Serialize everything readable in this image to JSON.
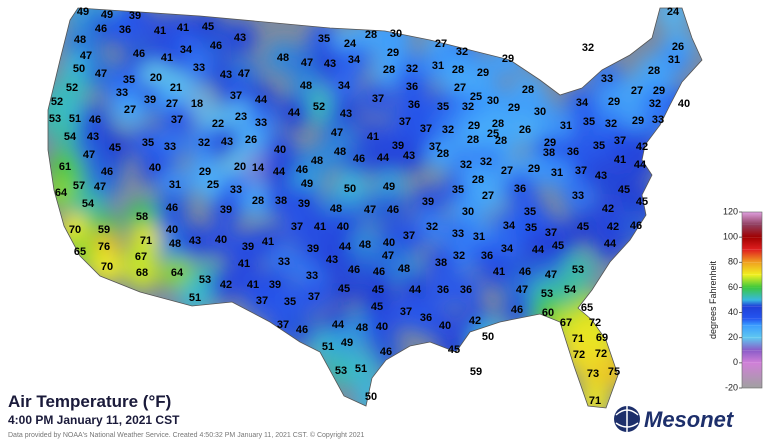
{
  "title": "Air Temperature (°F)",
  "timestamp": "4:00 PM January 11, 2021 CST",
  "credit": "Data provided by NOAA's National Weather Service. Created 4:50:32 PM January 11, 2021 CST. © Copyright 2021",
  "logo": "Mesonet",
  "colorbar": {
    "label": "degrees Fahrenheit",
    "lim": [
      -20,
      120
    ],
    "ticks": [
      120,
      100,
      80,
      60,
      40,
      20,
      0,
      -20
    ],
    "colormap": [
      {
        "value": -20,
        "color": "#a0a0a0"
      },
      {
        "value": 0,
        "color": "#d080d8"
      },
      {
        "value": 10,
        "color": "#8a5cc8"
      },
      {
        "value": 20,
        "color": "#60c8f0"
      },
      {
        "value": 30,
        "color": "#3a9cff"
      },
      {
        "value": 35,
        "color": "#2456f0"
      },
      {
        "value": 45,
        "color": "#1f3fd8"
      },
      {
        "value": 50,
        "color": "#38b8e0"
      },
      {
        "value": 60,
        "color": "#3cc83c"
      },
      {
        "value": 70,
        "color": "#f0f020"
      },
      {
        "value": 80,
        "color": "#f0a020"
      },
      {
        "value": 90,
        "color": "#e02020"
      },
      {
        "value": 100,
        "color": "#a00000"
      },
      {
        "value": 110,
        "color": "#904060"
      },
      {
        "value": 120,
        "color": "#e0a0e0"
      }
    ]
  },
  "stations": {
    "values": [
      49,
      49,
      39,
      41,
      45,
      41,
      46,
      36,
      48,
      46,
      34,
      43,
      35,
      24,
      28,
      30,
      27,
      24,
      26,
      32,
      29,
      32,
      47,
      46,
      41,
      48,
      47,
      43,
      34,
      29,
      28,
      32,
      31,
      28,
      29,
      31,
      33,
      28,
      50,
      47,
      35,
      20,
      33,
      43,
      47,
      52,
      21,
      48,
      34,
      36,
      27,
      25,
      27,
      29,
      28,
      33,
      39,
      27,
      18,
      37,
      44,
      52,
      37,
      36,
      35,
      32,
      30,
      29,
      30,
      34,
      32,
      40,
      29,
      52,
      53,
      51,
      46,
      27,
      37,
      22,
      23,
      33,
      44,
      43,
      37,
      37,
      32,
      29,
      28,
      31,
      35,
      32,
      29,
      33,
      54,
      43,
      35,
      32,
      43,
      26,
      47,
      41,
      39,
      37,
      28,
      26,
      29,
      36,
      35,
      37,
      42,
      47,
      45,
      33,
      40,
      48,
      46,
      44,
      43,
      28,
      25,
      28,
      27,
      41,
      44,
      38,
      61,
      46,
      40,
      29,
      20,
      14,
      44,
      46,
      48,
      32,
      32,
      29,
      37,
      43,
      31,
      45,
      57,
      47,
      31,
      25,
      49,
      50,
      49,
      35,
      28,
      27,
      36,
      33,
      45,
      64,
      54,
      33,
      28,
      38,
      39,
      46,
      39,
      48,
      47,
      46,
      39,
      30,
      35,
      42,
      34,
      35,
      37,
      45,
      42,
      46,
      58,
      70,
      59,
      40,
      37,
      41,
      40,
      32,
      37,
      31,
      33,
      71,
      76,
      48,
      43,
      40,
      39,
      41,
      40,
      44,
      48,
      39,
      32,
      36,
      34,
      44,
      45,
      44,
      65,
      67,
      70,
      68,
      41,
      33,
      46,
      46,
      48,
      38,
      41,
      46,
      47,
      53,
      33,
      43,
      47,
      64,
      53,
      42,
      41,
      39,
      45,
      45,
      44,
      36,
      36,
      47,
      53,
      54,
      51,
      35,
      37,
      37,
      45,
      37,
      42,
      46,
      60,
      65,
      67,
      72,
      36,
      37,
      46,
      44,
      48,
      40,
      40,
      50,
      71,
      69,
      51,
      49,
      46,
      45,
      72,
      72,
      53,
      51,
      59,
      73,
      75,
      50,
      71
    ]
  }
}
